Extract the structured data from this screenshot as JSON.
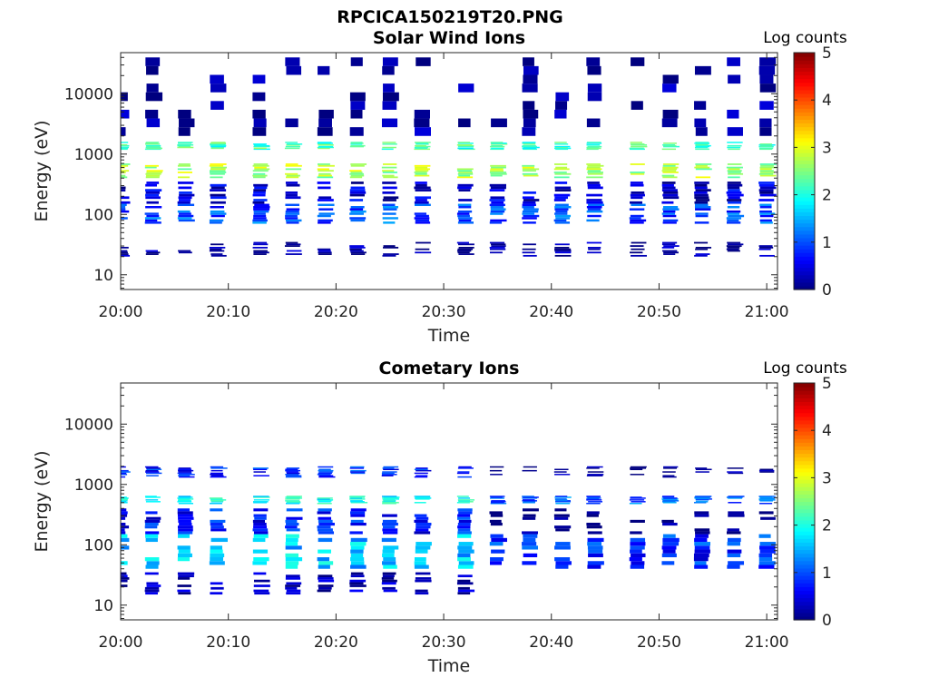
{
  "figure_title": "RPCICA150219T20.PNG",
  "colormap_stops": [
    "#00007f",
    "#0000ff",
    "#007fff",
    "#00ffff",
    "#7fff7f",
    "#ffff00",
    "#ff7f00",
    "#ff0000",
    "#7f0000"
  ],
  "chart_data": [
    {
      "type": "heatmap",
      "title": "Solar Wind Ions",
      "xlabel": "Time",
      "ylabel": "Energy (eV)",
      "y_scale": "log",
      "xlim": [
        "20:00",
        "21:01"
      ],
      "ylim": [
        5.7,
        48000
      ],
      "x_ticks": [
        "20:00",
        "20:10",
        "20:20",
        "20:30",
        "20:40",
        "20:50",
        "21:00"
      ],
      "y_ticks": [
        10,
        100,
        1000,
        10000
      ],
      "y_tick_labels": [
        "10",
        "100",
        "1000",
        "10000"
      ],
      "colorbar": {
        "label": "Log counts",
        "min": 0,
        "max": 5,
        "ticks": [
          "0",
          "1",
          "2",
          "3",
          "4",
          "5"
        ]
      },
      "grid": false,
      "scan_times": [
        "20:00",
        "20:03",
        "20:06",
        "20:09",
        "20:13",
        "20:16",
        "20:19",
        "20:22",
        "20:25",
        "20:28",
        "20:32",
        "20:35",
        "20:38",
        "20:41",
        "20:44",
        "20:48",
        "20:51",
        "20:54",
        "20:57",
        "21:00"
      ],
      "energy_bands_eV": [
        {
          "e_low": 400,
          "e_high": 700,
          "log_counts": 2.7
        },
        {
          "e_low": 1200,
          "e_high": 1600,
          "log_counts": 2.2
        },
        {
          "e_low": 70,
          "e_high": 150,
          "log_counts": 1.0
        },
        {
          "e_low": 150,
          "e_high": 350,
          "log_counts": 0.4
        },
        {
          "e_low": 20,
          "e_high": 35,
          "log_counts": 0.1
        },
        {
          "e_low": 2000,
          "e_high": 40000,
          "log_counts": 0.0
        }
      ]
    },
    {
      "type": "heatmap",
      "title": "Cometary Ions",
      "xlabel": "Time",
      "ylabel": "Energy (eV)",
      "y_scale": "log",
      "xlim": [
        "20:00",
        "21:01"
      ],
      "ylim": [
        5.7,
        48000
      ],
      "x_ticks": [
        "20:00",
        "20:10",
        "20:20",
        "20:30",
        "20:40",
        "20:50",
        "21:00"
      ],
      "y_ticks": [
        10,
        100,
        1000,
        10000
      ],
      "y_tick_labels": [
        "10",
        "100",
        "1000",
        "10000"
      ],
      "colorbar": {
        "label": "Log counts",
        "min": 0,
        "max": 5,
        "ticks": [
          "0",
          "1",
          "2",
          "3",
          "4",
          "5"
        ]
      },
      "grid": false,
      "scan_times": [
        "20:00",
        "20:03",
        "20:06",
        "20:09",
        "20:13",
        "20:16",
        "20:19",
        "20:22",
        "20:25",
        "20:28",
        "20:32",
        "20:35",
        "20:38",
        "20:41",
        "20:44",
        "20:48",
        "20:51",
        "20:54",
        "20:57",
        "21:00"
      ],
      "energy_bands_eV": [
        {
          "e_low": 40,
          "e_high": 150,
          "log_counts": 1.6
        },
        {
          "e_low": 150,
          "e_high": 400,
          "log_counts": 0.7
        },
        {
          "e_low": 480,
          "e_high": 650,
          "log_counts": 1.9
        },
        {
          "e_low": 1300,
          "e_high": 2000,
          "log_counts": 0.8
        },
        {
          "e_low": 15,
          "e_high": 35,
          "log_counts": 0.2
        }
      ]
    }
  ]
}
